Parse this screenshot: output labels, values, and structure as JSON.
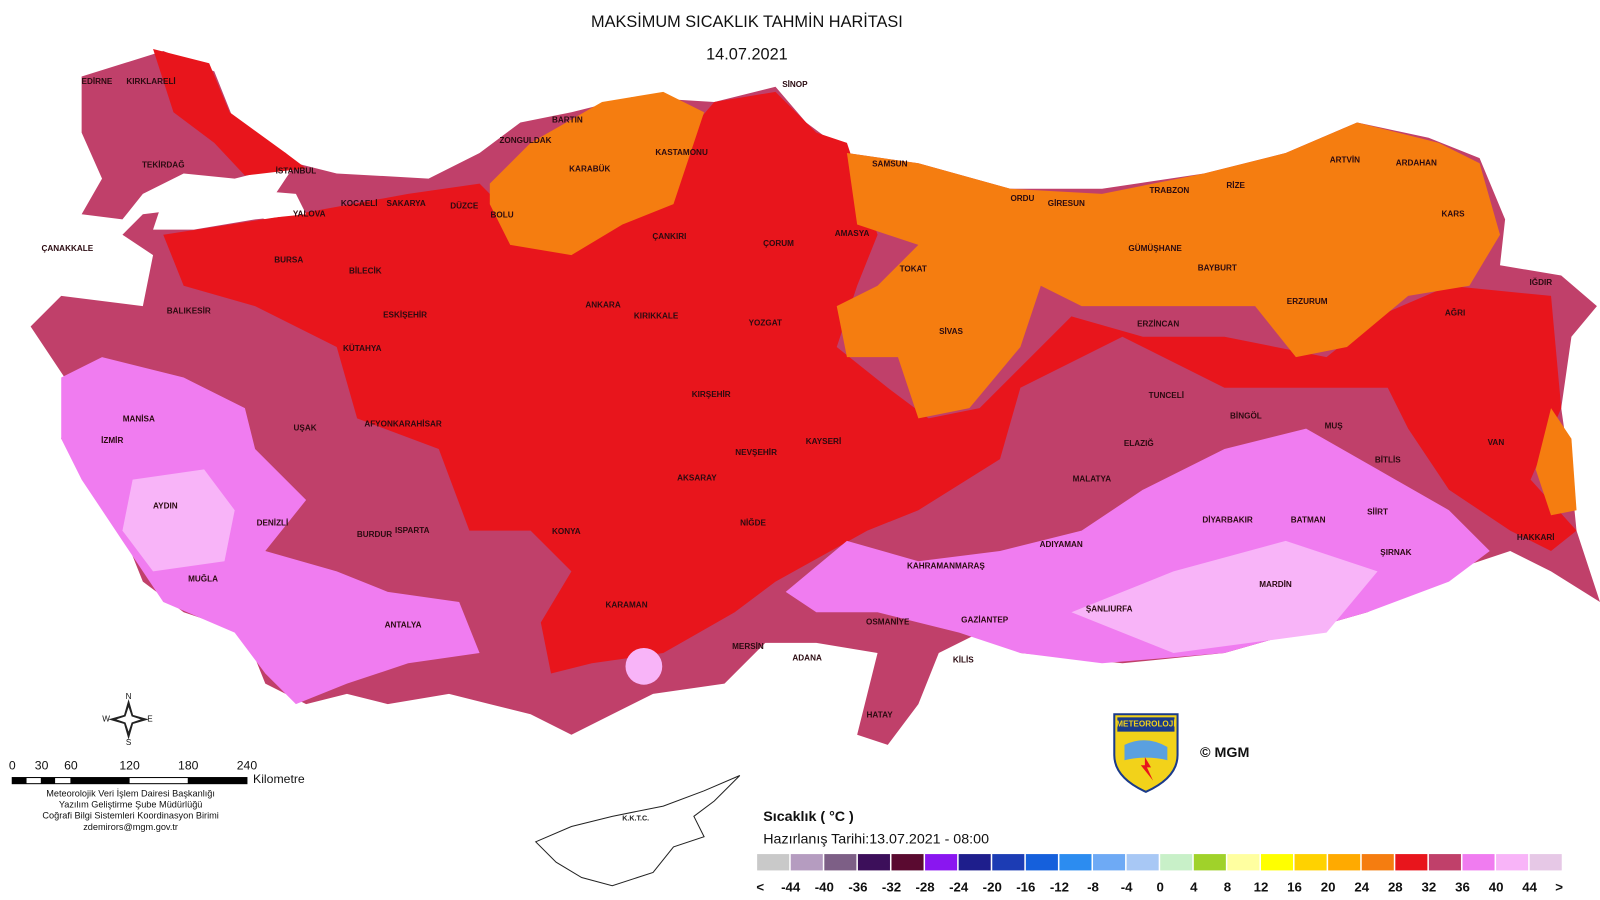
{
  "header": {
    "title": "MAKSİMUM SICAKLIK TAHMİN HARİTASI",
    "date": "14.07.2021"
  },
  "cities": [
    "EDİRNE",
    "KIRKLARELİ",
    "TEKİRDAĞ",
    "İSTANBUL",
    "KOCAELİ",
    "SAKARYA",
    "YALOVA",
    "DÜZCE",
    "BOLU",
    "ZONGULDAK",
    "BARTIN",
    "KARABÜK",
    "KASTAMONU",
    "SİNOP",
    "ÇANAKKALE",
    "BURSA",
    "BİLECİK",
    "BALIKESİR",
    "ESKİŞEHİR",
    "KÜTAHYA",
    "ÇANKIRI",
    "ÇORUM",
    "AMASYA",
    "SAMSUN",
    "TOKAT",
    "ORDU",
    "GİRESUN",
    "TRABZON",
    "RİZE",
    "ARTVİN",
    "ARDAHAN",
    "KARS",
    "GÜMÜŞHANE",
    "BAYBURT",
    "ERZURUM",
    "IĞDIR",
    "AĞRI",
    "ERZİNCAN",
    "SİVAS",
    "YOZGAT",
    "ANKARA",
    "KIRIKKALE",
    "KIRŞEHİR",
    "NEVŞEHİR",
    "KAYSERİ",
    "AKSARAY",
    "NİĞDE",
    "KONYA",
    "KARAMAN",
    "MERSİN",
    "ADANA",
    "OSMANİYE",
    "HATAY",
    "KAHRAMANMARAŞ",
    "GAZİANTEP",
    "KİLİS",
    "ADIYAMAN",
    "ŞANLIURFA",
    "MALATYA",
    "ELAZIĞ",
    "TUNCELİ",
    "BİNGÖL",
    "MUŞ",
    "BİTLİS",
    "VAN",
    "SİİRT",
    "BATMAN",
    "DİYARBAKIR",
    "MARDİN",
    "ŞIRNAK",
    "HAKKARİ",
    "MANİSA",
    "İZMİR",
    "UŞAK",
    "AFYONKARAHİSAR",
    "AYDIN",
    "DENİZLİ",
    "BURDUR",
    "ISPARTA",
    "MUĞLA",
    "ANTALYA"
  ],
  "cyprus_label": "K.K.T.C.",
  "compass": [
    "N",
    "E",
    "S",
    "W"
  ],
  "scale_bar": {
    "ticks": [
      0,
      30,
      60,
      120,
      180,
      240
    ],
    "unit": "Kilometre"
  },
  "credits": [
    "Meteorolojik Veri İşlem Dairesi Başkanlığı",
    "Yazılım Geliştirme Şube Müdürlüğü",
    "Coğrafi Bilgi Sistemleri Koordinasyon Birimi",
    "zdemirors@mgm.gov.tr"
  ],
  "logo": {
    "text": "METEOROLOJİ",
    "copyright": "© MGM"
  },
  "legend": {
    "title": "Sıcaklık ( °C )",
    "prepared": "Hazırlanış Tarihi:13.07.2021 - 08:00",
    "colors": [
      "#c9c9c9",
      "#b59cc0",
      "#7d5f86",
      "#3c0f5a",
      "#5a0a30",
      "#8a16f0",
      "#1e1e8c",
      "#1c3cb4",
      "#1560dc",
      "#2c8cf0",
      "#6eaaf5",
      "#a8c8f5",
      "#c8f0c8",
      "#a0d22a",
      "#ffffa0",
      "#ffff00",
      "#ffd200",
      "#ffaa00",
      "#f57d10",
      "#e8151c",
      "#c0406a",
      "#f07cf0",
      "#f8b4f8",
      "#e6c8e6"
    ],
    "labels": [
      "<",
      -44,
      -40,
      -36,
      -32,
      -28,
      -24,
      -20,
      -16,
      -12,
      -8,
      -4,
      0,
      4,
      8,
      12,
      16,
      20,
      24,
      28,
      32,
      36,
      40,
      44,
      ">"
    ]
  }
}
